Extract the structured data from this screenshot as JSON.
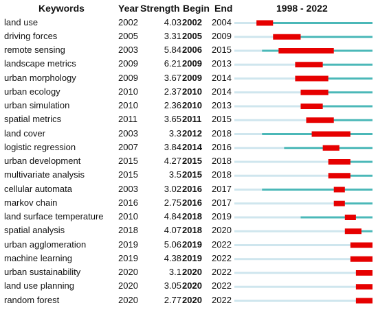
{
  "headers": {
    "keywords": "Keywords",
    "year": "Year",
    "strength": "Strength",
    "begin": "Begin",
    "end": "End",
    "range": "1998 - 2022"
  },
  "colors": {
    "timeline": "#4bb8b8",
    "pre": "#cfe6ee",
    "burst": "#e60000"
  },
  "chart_data": {
    "type": "table",
    "title": "",
    "timeline_start": 1998,
    "timeline_end": 2022,
    "columns": [
      "Keywords",
      "Year",
      "Strength",
      "Begin",
      "End",
      "1998 - 2022"
    ],
    "rows": [
      {
        "keyword": "land use",
        "year": 2002,
        "strength": "4.03",
        "begin": 2002,
        "end": 2004
      },
      {
        "keyword": "driving forces",
        "year": 2005,
        "strength": "3.31",
        "begin": 2005,
        "end": 2009
      },
      {
        "keyword": "remote sensing",
        "year": 2003,
        "strength": "5.84",
        "begin": 2006,
        "end": 2015
      },
      {
        "keyword": "landscape metrics",
        "year": 2009,
        "strength": "6.21",
        "begin": 2009,
        "end": 2013
      },
      {
        "keyword": "urban morphology",
        "year": 2009,
        "strength": "3.67",
        "begin": 2009,
        "end": 2014
      },
      {
        "keyword": "urban ecology",
        "year": 2010,
        "strength": "2.37",
        "begin": 2010,
        "end": 2014
      },
      {
        "keyword": "urban simulation",
        "year": 2010,
        "strength": "2.36",
        "begin": 2010,
        "end": 2013
      },
      {
        "keyword": "spatial metrics",
        "year": 2011,
        "strength": "3.65",
        "begin": 2011,
        "end": 2015
      },
      {
        "keyword": "land cover",
        "year": 2003,
        "strength": "3.3",
        "begin": 2012,
        "end": 2018
      },
      {
        "keyword": "logistic regression",
        "year": 2007,
        "strength": "3.84",
        "begin": 2014,
        "end": 2016
      },
      {
        "keyword": "urban development",
        "year": 2015,
        "strength": "4.27",
        "begin": 2015,
        "end": 2018
      },
      {
        "keyword": "multivariate analysis",
        "year": 2015,
        "strength": "3.5",
        "begin": 2015,
        "end": 2018
      },
      {
        "keyword": "cellular automata",
        "year": 2003,
        "strength": "3.02",
        "begin": 2016,
        "end": 2017
      },
      {
        "keyword": "markov chain",
        "year": 2016,
        "strength": "2.75",
        "begin": 2016,
        "end": 2017
      },
      {
        "keyword": "land surface temperature",
        "year": 2010,
        "strength": "4.84",
        "begin": 2018,
        "end": 2019
      },
      {
        "keyword": "spatial analysis",
        "year": 2018,
        "strength": "4.07",
        "begin": 2018,
        "end": 2020
      },
      {
        "keyword": "urban agglomeration",
        "year": 2019,
        "strength": "5.06",
        "begin": 2019,
        "end": 2022
      },
      {
        "keyword": "machine learning",
        "year": 2019,
        "strength": "4.38",
        "begin": 2019,
        "end": 2022
      },
      {
        "keyword": "urban sustainability",
        "year": 2020,
        "strength": "3.1",
        "begin": 2020,
        "end": 2022
      },
      {
        "keyword": "land use planning",
        "year": 2020,
        "strength": "3.05",
        "begin": 2020,
        "end": 2022
      },
      {
        "keyword": "random forest",
        "year": 2020,
        "strength": "2.77",
        "begin": 2020,
        "end": 2022
      }
    ]
  }
}
